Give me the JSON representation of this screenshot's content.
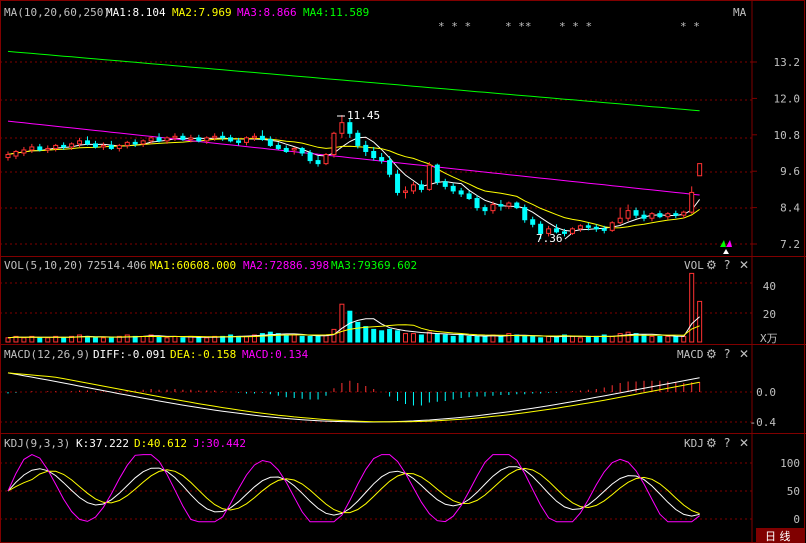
{
  "period_label": "日 线",
  "main": {
    "header": {
      "name": "MA(10,20,60,250)",
      "ma1": "MA1:8.104",
      "ma2": "MA2:7.969",
      "ma3": "MA3:8.866",
      "ma4": "MA4:11.589",
      "tag": "MA"
    },
    "stars": [
      "* * *",
      "* **",
      "* * *",
      "* *"
    ],
    "axis_ticks": [
      "13.2",
      "12.0",
      "10.8",
      "9.6",
      "8.4",
      "7.2"
    ],
    "high_label": "11.45",
    "low_label": "7.36",
    "colors": {
      "ma1": "#ffffff",
      "ma2": "#ffff00",
      "ma3": "#ff00ff",
      "ma4": "#00ff00",
      "up": "#ff3232",
      "down": "#00ffff"
    }
  },
  "vol": {
    "header": {
      "name": "VOL(5,10,20)",
      "value": "72514.406",
      "ma1": "MA1:60608.000",
      "ma2": "MA2:72886.398",
      "ma3": "MA3:79369.602",
      "tag": "VOL"
    },
    "axis_ticks": [
      "40",
      "20"
    ],
    "unit": "X万"
  },
  "macd": {
    "header": {
      "name": "MACD(12,26,9)",
      "diff": "DIFF:-0.091",
      "dea": "DEA:-0.158",
      "macd": "MACD:0.134",
      "tag": "MACD"
    },
    "axis_ticks": [
      "0.0",
      "-0.4"
    ]
  },
  "kdj": {
    "header": {
      "name": "KDJ(9,3,3)",
      "k": "K:37.222",
      "d": "D:40.612",
      "j": "J:30.442",
      "tag": "KDJ"
    },
    "axis_ticks": [
      "100",
      "50",
      "0"
    ]
  },
  "chart_data": {
    "type": "candlestick",
    "price_axis": {
      "min": 7.2,
      "max": 13.2
    },
    "candles": [
      {
        "o": 10.05,
        "h": 10.25,
        "l": 9.95,
        "c": 10.15
      },
      {
        "o": 10.1,
        "h": 10.3,
        "l": 10.0,
        "c": 10.25
      },
      {
        "o": 10.2,
        "h": 10.4,
        "l": 10.1,
        "c": 10.3
      },
      {
        "o": 10.3,
        "h": 10.5,
        "l": 10.2,
        "c": 10.4
      },
      {
        "o": 10.4,
        "h": 10.5,
        "l": 10.25,
        "c": 10.3
      },
      {
        "o": 10.3,
        "h": 10.45,
        "l": 10.2,
        "c": 10.35
      },
      {
        "o": 10.35,
        "h": 10.5,
        "l": 10.25,
        "c": 10.45
      },
      {
        "o": 10.45,
        "h": 10.55,
        "l": 10.3,
        "c": 10.4
      },
      {
        "o": 10.4,
        "h": 10.55,
        "l": 10.3,
        "c": 10.5
      },
      {
        "o": 10.5,
        "h": 10.7,
        "l": 10.4,
        "c": 10.6
      },
      {
        "o": 10.6,
        "h": 10.75,
        "l": 10.45,
        "c": 10.5
      },
      {
        "o": 10.5,
        "h": 10.6,
        "l": 10.35,
        "c": 10.4
      },
      {
        "o": 10.4,
        "h": 10.55,
        "l": 10.3,
        "c": 10.45
      },
      {
        "o": 10.45,
        "h": 10.6,
        "l": 10.3,
        "c": 10.35
      },
      {
        "o": 10.35,
        "h": 10.5,
        "l": 10.25,
        "c": 10.45
      },
      {
        "o": 10.45,
        "h": 10.6,
        "l": 10.35,
        "c": 10.55
      },
      {
        "o": 10.55,
        "h": 10.65,
        "l": 10.4,
        "c": 10.5
      },
      {
        "o": 10.5,
        "h": 10.65,
        "l": 10.4,
        "c": 10.6
      },
      {
        "o": 10.6,
        "h": 10.75,
        "l": 10.5,
        "c": 10.7
      },
      {
        "o": 10.7,
        "h": 10.85,
        "l": 10.55,
        "c": 10.6
      },
      {
        "o": 10.6,
        "h": 10.75,
        "l": 10.5,
        "c": 10.7
      },
      {
        "o": 10.7,
        "h": 10.85,
        "l": 10.6,
        "c": 10.75
      },
      {
        "o": 10.75,
        "h": 10.85,
        "l": 10.6,
        "c": 10.65
      },
      {
        "o": 10.65,
        "h": 10.8,
        "l": 10.55,
        "c": 10.7
      },
      {
        "o": 10.7,
        "h": 10.8,
        "l": 10.55,
        "c": 10.6
      },
      {
        "o": 10.6,
        "h": 10.75,
        "l": 10.5,
        "c": 10.7
      },
      {
        "o": 10.7,
        "h": 10.85,
        "l": 10.6,
        "c": 10.75
      },
      {
        "o": 10.75,
        "h": 10.9,
        "l": 10.6,
        "c": 10.7
      },
      {
        "o": 10.7,
        "h": 10.8,
        "l": 10.55,
        "c": 10.6
      },
      {
        "o": 10.6,
        "h": 10.7,
        "l": 10.45,
        "c": 10.55
      },
      {
        "o": 10.55,
        "h": 10.75,
        "l": 10.45,
        "c": 10.7
      },
      {
        "o": 10.7,
        "h": 10.85,
        "l": 10.6,
        "c": 10.75
      },
      {
        "o": 10.75,
        "h": 10.95,
        "l": 10.6,
        "c": 10.65
      },
      {
        "o": 10.65,
        "h": 10.75,
        "l": 10.4,
        "c": 10.45
      },
      {
        "o": 10.45,
        "h": 10.55,
        "l": 10.3,
        "c": 10.35
      },
      {
        "o": 10.35,
        "h": 10.45,
        "l": 10.2,
        "c": 10.25
      },
      {
        "o": 10.3,
        "h": 10.4,
        "l": 10.15,
        "c": 10.35
      },
      {
        "o": 10.35,
        "h": 10.4,
        "l": 10.1,
        "c": 10.2
      },
      {
        "o": 10.2,
        "h": 10.3,
        "l": 9.85,
        "c": 9.95
      },
      {
        "o": 9.95,
        "h": 10.1,
        "l": 9.75,
        "c": 9.85
      },
      {
        "o": 9.85,
        "h": 10.2,
        "l": 9.8,
        "c": 10.15
      },
      {
        "o": 10.15,
        "h": 10.9,
        "l": 10.05,
        "c": 10.85
      },
      {
        "o": 10.85,
        "h": 11.45,
        "l": 10.7,
        "c": 11.2
      },
      {
        "o": 11.2,
        "h": 11.35,
        "l": 10.7,
        "c": 10.85
      },
      {
        "o": 10.85,
        "h": 10.95,
        "l": 10.35,
        "c": 10.45
      },
      {
        "o": 10.45,
        "h": 10.6,
        "l": 10.1,
        "c": 10.25
      },
      {
        "o": 10.25,
        "h": 10.4,
        "l": 9.95,
        "c": 10.05
      },
      {
        "o": 10.05,
        "h": 10.2,
        "l": 9.85,
        "c": 9.95
      },
      {
        "o": 9.95,
        "h": 10.1,
        "l": 9.4,
        "c": 9.5
      },
      {
        "o": 9.5,
        "h": 9.65,
        "l": 8.8,
        "c": 8.9
      },
      {
        "o": 8.9,
        "h": 9.1,
        "l": 8.7,
        "c": 8.95
      },
      {
        "o": 8.95,
        "h": 9.25,
        "l": 8.85,
        "c": 9.15
      },
      {
        "o": 9.15,
        "h": 9.3,
        "l": 8.9,
        "c": 9.0
      },
      {
        "o": 9.0,
        "h": 9.9,
        "l": 8.95,
        "c": 9.8
      },
      {
        "o": 9.8,
        "h": 9.85,
        "l": 9.15,
        "c": 9.25
      },
      {
        "o": 9.25,
        "h": 9.35,
        "l": 9.0,
        "c": 9.1
      },
      {
        "o": 9.1,
        "h": 9.2,
        "l": 8.85,
        "c": 8.95
      },
      {
        "o": 8.95,
        "h": 9.05,
        "l": 8.75,
        "c": 8.85
      },
      {
        "o": 8.85,
        "h": 8.95,
        "l": 8.65,
        "c": 8.7
      },
      {
        "o": 8.7,
        "h": 8.8,
        "l": 8.3,
        "c": 8.4
      },
      {
        "o": 8.4,
        "h": 8.5,
        "l": 8.15,
        "c": 8.3
      },
      {
        "o": 8.3,
        "h": 8.6,
        "l": 8.2,
        "c": 8.5
      },
      {
        "o": 8.5,
        "h": 8.65,
        "l": 8.3,
        "c": 8.45
      },
      {
        "o": 8.45,
        "h": 8.6,
        "l": 8.35,
        "c": 8.55
      },
      {
        "o": 8.55,
        "h": 8.6,
        "l": 8.35,
        "c": 8.4
      },
      {
        "o": 8.4,
        "h": 8.5,
        "l": 7.9,
        "c": 8.0
      },
      {
        "o": 8.0,
        "h": 8.1,
        "l": 7.75,
        "c": 7.85
      },
      {
        "o": 7.85,
        "h": 7.95,
        "l": 7.36,
        "c": 7.55
      },
      {
        "o": 7.55,
        "h": 7.8,
        "l": 7.45,
        "c": 7.7
      },
      {
        "o": 7.7,
        "h": 7.85,
        "l": 7.55,
        "c": 7.6
      },
      {
        "o": 7.6,
        "h": 7.7,
        "l": 7.45,
        "c": 7.55
      },
      {
        "o": 7.55,
        "h": 7.75,
        "l": 7.5,
        "c": 7.7
      },
      {
        "o": 7.7,
        "h": 7.85,
        "l": 7.6,
        "c": 7.8
      },
      {
        "o": 7.8,
        "h": 7.9,
        "l": 7.65,
        "c": 7.75
      },
      {
        "o": 7.75,
        "h": 7.85,
        "l": 7.6,
        "c": 7.7
      },
      {
        "o": 7.7,
        "h": 7.8,
        "l": 7.55,
        "c": 7.65
      },
      {
        "o": 7.65,
        "h": 7.95,
        "l": 7.6,
        "c": 7.9
      },
      {
        "o": 7.9,
        "h": 8.4,
        "l": 7.85,
        "c": 8.05
      },
      {
        "o": 8.05,
        "h": 8.5,
        "l": 7.95,
        "c": 8.3
      },
      {
        "o": 8.3,
        "h": 8.4,
        "l": 8.05,
        "c": 8.15
      },
      {
        "o": 8.15,
        "h": 8.3,
        "l": 7.95,
        "c": 8.05
      },
      {
        "o": 8.05,
        "h": 8.25,
        "l": 7.95,
        "c": 8.2
      },
      {
        "o": 8.2,
        "h": 8.3,
        "l": 8.05,
        "c": 8.1
      },
      {
        "o": 8.1,
        "h": 8.25,
        "l": 8.0,
        "c": 8.2
      },
      {
        "o": 8.2,
        "h": 8.3,
        "l": 8.05,
        "c": 8.15
      },
      {
        "o": 8.15,
        "h": 8.3,
        "l": 8.05,
        "c": 8.25
      },
      {
        "o": 8.25,
        "h": 9.1,
        "l": 8.2,
        "c": 8.9
      },
      {
        "o": 9.45,
        "h": 9.85,
        "l": 9.45,
        "c": 9.85
      }
    ],
    "volume": [
      3,
      4,
      3,
      4,
      3,
      3,
      4,
      3,
      4,
      5,
      4,
      3,
      3,
      3,
      4,
      5,
      4,
      4,
      5,
      4,
      3,
      4,
      3,
      4,
      3,
      3,
      4,
      4,
      5,
      4,
      4,
      5,
      6,
      7,
      6,
      5,
      5,
      4,
      4,
      4,
      5,
      9,
      27,
      22,
      14,
      11,
      9,
      8,
      9,
      8,
      6,
      6,
      5,
      7,
      6,
      5,
      4,
      5,
      4,
      4,
      4,
      5,
      4,
      6,
      5,
      4,
      4,
      3,
      4,
      4,
      5,
      4,
      3,
      4,
      4,
      5,
      4,
      6,
      7,
      6,
      5,
      4,
      4,
      4,
      4,
      4,
      49,
      29
    ],
    "macd_bars": [
      -0.02,
      -0.01,
      0,
      0.01,
      0.0,
      0.01,
      0.01,
      0.0,
      0.01,
      0.02,
      0.02,
      0.01,
      0.01,
      0.0,
      0.01,
      0.02,
      0.02,
      0.03,
      0.04,
      0.03,
      0.03,
      0.04,
      0.03,
      0.03,
      0.02,
      0.02,
      0.02,
      0.01,
      0.0,
      -0.01,
      -0.02,
      -0.02,
      -0.01,
      -0.03,
      -0.05,
      -0.07,
      -0.08,
      -0.09,
      -0.1,
      -0.1,
      -0.05,
      0.05,
      0.12,
      0.15,
      0.12,
      0.08,
      0.04,
      0.0,
      -0.06,
      -0.12,
      -0.16,
      -0.18,
      -0.18,
      -0.14,
      -0.13,
      -0.12,
      -0.1,
      -0.08,
      -0.07,
      -0.06,
      -0.06,
      -0.05,
      -0.04,
      -0.04,
      -0.03,
      -0.03,
      -0.02,
      -0.02,
      -0.01,
      -0.01,
      0.0,
      0.01,
      0.02,
      0.03,
      0.04,
      0.06,
      0.09,
      0.12,
      0.14,
      0.14,
      0.15,
      0.15,
      0.15,
      0.14,
      0.13,
      0.12,
      0.13,
      0.134
    ]
  }
}
